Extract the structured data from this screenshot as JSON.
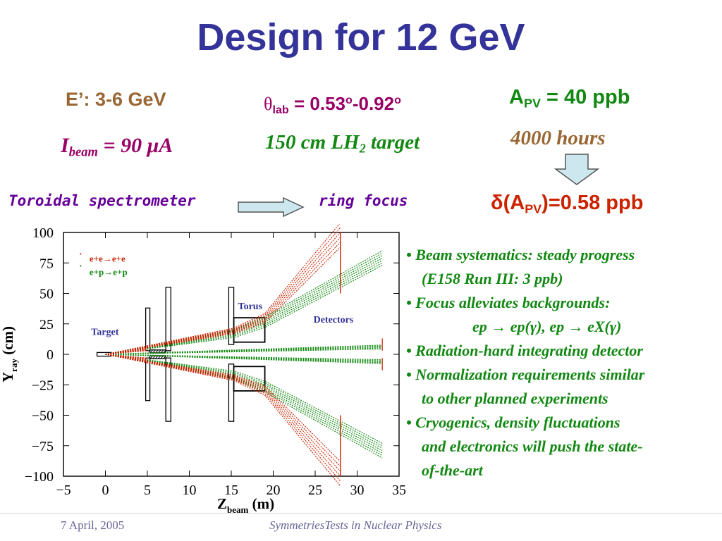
{
  "title": "Design for 12 GeV",
  "params": {
    "energy": "E’: 3-6 GeV",
    "beam_I": "I",
    "beam_sub": "beam",
    "beam_val": " = 90 μA",
    "theta_sym": "θ",
    "theta_sub": "lab",
    "theta_val": " = 0.53",
    "theta_deg1": "o",
    "theta_dash": "-0.92",
    "theta_deg2": "o",
    "target_pre": "150 cm LH",
    "target_sub": "2",
    "target_post": " target",
    "apv_A": "A",
    "apv_sub": "PV",
    "apv_val": " = 40 ppb",
    "hours": "4000 hours",
    "delta_pre": "δ(A",
    "delta_sub": "PV",
    "delta_post": ")=0.58 ppb"
  },
  "toroidal": "Toroidal spectrometer",
  "ring_focus": "ring focus",
  "colors": {
    "title": "#333399",
    "brown": "#996633",
    "purple": "#990066",
    "green": "#118811",
    "red": "#cc2200",
    "arrow_fill": "#cce8ee"
  },
  "plot": {
    "ylabel_main": "Y",
    "ylabel_sub": "ray",
    "ylabel_unit": " (cm)",
    "xlabel_main": "Z",
    "xlabel_sub": "beam",
    "xlabel_unit": " (m)",
    "legend_ee": "e+e→e+e",
    "legend_ep": "e+p→e+p",
    "label_target": "Target",
    "label_torus": "Torus",
    "label_detectors": "Detectors",
    "x_ticks": [
      "−5",
      "0",
      "5",
      "10",
      "15",
      "20",
      "25",
      "30",
      "35"
    ],
    "y_ticks": [
      "100",
      "75",
      "50",
      "25",
      "0",
      "−25",
      "−50",
      "−75",
      "−100"
    ],
    "xlim": [
      -5,
      35
    ],
    "ylim": [
      -100,
      100
    ]
  },
  "bullets": {
    "b1": "• Beam systematics: steady progress",
    "b1b": "(E158 Run III: 3 ppb)",
    "b2": "• Focus alleviates backgrounds:",
    "b2b": "ep → ep(γ), ep → eX(γ)",
    "b3": "• Radiation-hard integrating detector",
    "b4": "• Normalization requirements similar",
    "b4b": "to other planned experiments",
    "b5": "• Cryogenics, density fluctuations",
    "b5b": "and electronics will push the state-",
    "b5c": "of-the-art"
  },
  "footer": {
    "date": "7 April, 2005",
    "center": "SymmetriesTests in Nuclear Physics"
  }
}
